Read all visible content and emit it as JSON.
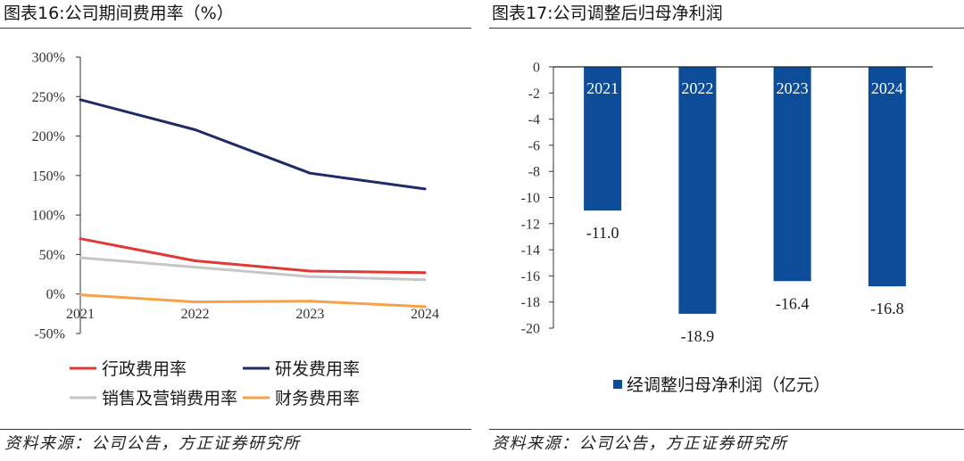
{
  "chart_data": [
    {
      "type": "line",
      "title": "图表16:公司期间费用率（%）",
      "source": "资料来源：公司公告，方正证券研究所",
      "x": [
        "2021",
        "2022",
        "2023",
        "2024"
      ],
      "ylim": [
        -50,
        300
      ],
      "ytick_labels": [
        "300%",
        "250%",
        "200%",
        "150%",
        "100%",
        "50%",
        "0%",
        "-50%"
      ],
      "grid": false,
      "legend": "bottom",
      "series": [
        {
          "name": "行政费用率",
          "color": "#e03a35",
          "values": [
            70,
            42,
            29,
            27
          ]
        },
        {
          "name": "研发费用率",
          "color": "#1d2b6b",
          "values": [
            246,
            208,
            153,
            133
          ]
        },
        {
          "name": "销售及营销费用率",
          "color": "#c6c6c6",
          "values": [
            46,
            34,
            22,
            18
          ]
        },
        {
          "name": "财务费用率",
          "color": "#f6a24b",
          "values": [
            -1,
            -10,
            -9,
            -16
          ]
        }
      ]
    },
    {
      "type": "bar",
      "title": "图表17:公司调整后归母净利润",
      "source": "资料来源：公司公告，方正证券研究所",
      "categories": [
        "2021",
        "2022",
        "2023",
        "2024"
      ],
      "ylim": [
        -20,
        0
      ],
      "ytick_labels": [
        "0",
        "-2",
        "-4",
        "-6",
        "-8",
        "-10",
        "-12",
        "-14",
        "-16",
        "-18",
        "-20"
      ],
      "grid": false,
      "legend": "bottom",
      "series": [
        {
          "name": "经调整归母净利润（亿元）",
          "color": "#0d4c99",
          "values": [
            -11.0,
            -18.9,
            -16.4,
            -16.8
          ]
        }
      ]
    }
  ]
}
